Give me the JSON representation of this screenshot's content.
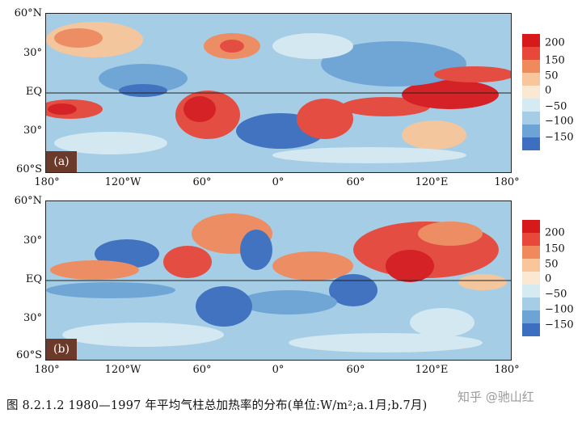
{
  "figure": {
    "caption": "图 8.2.1.2  1980—1997 年平均气柱总加热率的分布(单位:W/m²;a.1月;b.7月)",
    "watermark": "知乎 @驰山红"
  },
  "panels": [
    {
      "id": "a",
      "tag": "(a)"
    },
    {
      "id": "b",
      "tag": "(b)"
    }
  ],
  "axes": {
    "lat_labels": [
      "60°N",
      "30°",
      "EQ",
      "30°",
      "60°S"
    ],
    "lon_labels": [
      "180°",
      "120°W",
      "60°",
      "0°",
      "60°",
      "120°E",
      "180°"
    ]
  },
  "colorbar": {
    "labels": [
      "200",
      "150",
      "50",
      "0",
      "−50",
      "−100",
      "−150"
    ],
    "colors": [
      "#d7191c",
      "#e8473a",
      "#f08a5d",
      "#f8c69a",
      "#fbe8d2",
      "#d6eaf2",
      "#a6cde6",
      "#6da4d6",
      "#3c6fbf"
    ]
  }
}
